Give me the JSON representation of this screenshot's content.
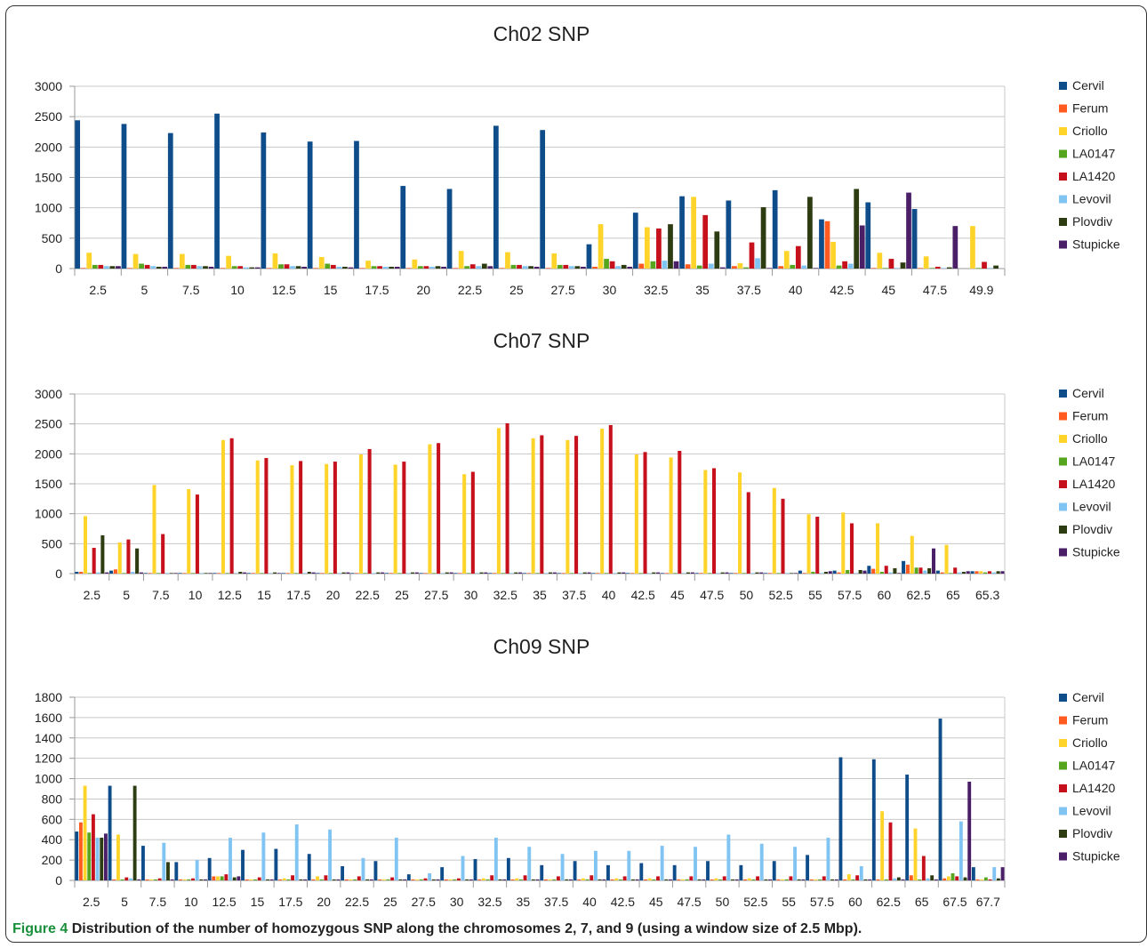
{
  "colors": {
    "Cervil": "#0f4d8a",
    "Ferum": "#ff5a1f",
    "Criollo": "#ffd42a",
    "LA0147": "#56a51f",
    "LA1420": "#c6101b",
    "Levovil": "#7fc4f2",
    "Plovdiv": "#2d3d11",
    "Stupicke": "#4a1f68"
  },
  "caption": {
    "label": "Figure 4",
    "text": "Distribution of the number of homozygous SNP along the chromosomes 2, 7, and 9 (using a window size of 2.5 Mbp)."
  },
  "chart_data": [
    {
      "type": "bar",
      "title": "Ch02 SNP",
      "ylim": [
        0,
        3000
      ],
      "yticks": [
        0,
        500,
        1000,
        1500,
        2000,
        2500,
        3000
      ],
      "grid": true,
      "legend_position": "right",
      "categories": [
        "2.5",
        "5",
        "7.5",
        "10",
        "12.5",
        "15",
        "17.5",
        "20",
        "22.5",
        "25",
        "27.5",
        "30",
        "32.5",
        "35",
        "37.5",
        "40",
        "42.5",
        "45",
        "47.5",
        "49.9"
      ],
      "series": [
        {
          "name": "Cervil",
          "values": [
            2440,
            2380,
            2230,
            2550,
            2240,
            2090,
            2100,
            1360,
            1310,
            2350,
            2280,
            400,
            920,
            1190,
            1120,
            1290,
            810,
            1090,
            980,
            0
          ]
        },
        {
          "name": "Ferum",
          "values": [
            10,
            10,
            10,
            10,
            10,
            10,
            10,
            10,
            10,
            10,
            10,
            30,
            80,
            70,
            40,
            40,
            780,
            10,
            10,
            0
          ]
        },
        {
          "name": "Criollo",
          "values": [
            260,
            240,
            240,
            210,
            250,
            190,
            130,
            150,
            290,
            270,
            250,
            730,
            680,
            1180,
            90,
            290,
            440,
            260,
            200,
            700
          ]
        },
        {
          "name": "LA0147",
          "values": [
            60,
            80,
            60,
            40,
            70,
            80,
            40,
            40,
            40,
            60,
            60,
            160,
            120,
            50,
            20,
            60,
            50,
            10,
            10,
            10
          ]
        },
        {
          "name": "LA1420",
          "values": [
            60,
            60,
            60,
            40,
            70,
            60,
            40,
            40,
            70,
            60,
            60,
            120,
            660,
            880,
            430,
            370,
            120,
            160,
            30,
            110
          ]
        },
        {
          "name": "Levovil",
          "values": [
            40,
            40,
            40,
            20,
            40,
            30,
            30,
            30,
            40,
            40,
            40,
            40,
            130,
            80,
            170,
            50,
            80,
            10,
            10,
            10
          ]
        },
        {
          "name": "Plovdiv",
          "values": [
            40,
            30,
            40,
            20,
            40,
            30,
            30,
            40,
            80,
            40,
            40,
            60,
            730,
            610,
            1010,
            1180,
            1310,
            100,
            20,
            50
          ]
        },
        {
          "name": "Stupicke",
          "values": [
            40,
            30,
            30,
            20,
            30,
            20,
            30,
            30,
            40,
            30,
            30,
            30,
            120,
            20,
            10,
            10,
            710,
            1250,
            700,
            0
          ]
        }
      ]
    },
    {
      "type": "bar",
      "title": "Ch07 SNP",
      "ylim": [
        0,
        3000
      ],
      "yticks": [
        0,
        500,
        1000,
        1500,
        2000,
        2500,
        3000
      ],
      "grid": true,
      "legend_position": "right",
      "categories": [
        "2.5",
        "5",
        "7.5",
        "10",
        "12.5",
        "15",
        "17.5",
        "20",
        "22.5",
        "25",
        "27.5",
        "30",
        "32.5",
        "35",
        "37.5",
        "40",
        "42.5",
        "45",
        "47.5",
        "50",
        "52.5",
        "55",
        "57.5",
        "60",
        "62.5",
        "65",
        "65.3"
      ],
      "series": [
        {
          "name": "Cervil",
          "values": [
            30,
            50,
            10,
            10,
            10,
            10,
            10,
            10,
            10,
            10,
            10,
            10,
            10,
            10,
            10,
            10,
            10,
            10,
            10,
            10,
            10,
            50,
            50,
            130,
            210,
            50,
            40
          ]
        },
        {
          "name": "Ferum",
          "values": [
            30,
            70,
            10,
            10,
            10,
            10,
            10,
            10,
            10,
            10,
            10,
            10,
            10,
            10,
            10,
            10,
            10,
            10,
            10,
            10,
            10,
            10,
            20,
            80,
            150,
            20,
            40
          ]
        },
        {
          "name": "Criollo",
          "values": [
            960,
            520,
            1480,
            1410,
            2230,
            1890,
            1810,
            1830,
            1990,
            1820,
            2160,
            1660,
            2430,
            2260,
            2230,
            2420,
            1990,
            1940,
            1730,
            1690,
            1430,
            990,
            1020,
            840,
            630,
            480,
            40
          ]
        },
        {
          "name": "LA0147",
          "values": [
            10,
            10,
            10,
            10,
            10,
            10,
            10,
            10,
            10,
            10,
            10,
            10,
            10,
            10,
            10,
            10,
            10,
            10,
            10,
            10,
            10,
            30,
            60,
            30,
            100,
            10,
            20
          ]
        },
        {
          "name": "LA1420",
          "values": [
            430,
            570,
            660,
            1320,
            2260,
            1930,
            1880,
            1870,
            2080,
            1870,
            2180,
            1700,
            2510,
            2310,
            2300,
            2480,
            2030,
            2050,
            1760,
            1360,
            1250,
            950,
            840,
            130,
            100,
            100,
            40
          ]
        },
        {
          "name": "Levovil",
          "values": [
            20,
            30,
            10,
            10,
            10,
            10,
            10,
            10,
            10,
            10,
            10,
            10,
            10,
            10,
            10,
            10,
            10,
            10,
            10,
            10,
            10,
            10,
            10,
            20,
            50,
            20,
            20
          ]
        },
        {
          "name": "Plovdiv",
          "values": [
            640,
            420,
            10,
            10,
            30,
            20,
            30,
            20,
            20,
            20,
            20,
            20,
            20,
            20,
            20,
            20,
            20,
            20,
            20,
            20,
            10,
            30,
            60,
            90,
            90,
            30,
            40
          ]
        },
        {
          "name": "Stupicke",
          "values": [
            20,
            20,
            10,
            10,
            20,
            10,
            20,
            20,
            20,
            20,
            20,
            20,
            20,
            20,
            20,
            20,
            20,
            20,
            20,
            20,
            10,
            40,
            50,
            10,
            420,
            40,
            40
          ]
        }
      ]
    },
    {
      "type": "bar",
      "title": "Ch09 SNP",
      "ylim": [
        0,
        1800
      ],
      "yticks": [
        0,
        200,
        400,
        600,
        800,
        1000,
        1200,
        1400,
        1600,
        1800
      ],
      "grid": true,
      "legend_position": "right",
      "categories": [
        "2.5",
        "5",
        "7.5",
        "10",
        "12.5",
        "15",
        "17.5",
        "20",
        "22.5",
        "25",
        "27.5",
        "30",
        "32.5",
        "35",
        "37.5",
        "40",
        "42.5",
        "45",
        "47.5",
        "50",
        "52.5",
        "55",
        "57.5",
        "60",
        "62.5",
        "65",
        "67.5",
        "67.7"
      ],
      "series": [
        {
          "name": "Cervil",
          "values": [
            480,
            930,
            340,
            180,
            220,
            300,
            310,
            260,
            140,
            190,
            60,
            130,
            210,
            220,
            150,
            190,
            150,
            170,
            150,
            190,
            150,
            190,
            250,
            1210,
            1190,
            1040,
            1590,
            130
          ]
        },
        {
          "name": "Ferum",
          "values": [
            570,
            10,
            10,
            10,
            40,
            10,
            10,
            10,
            10,
            10,
            10,
            10,
            10,
            10,
            10,
            10,
            10,
            10,
            10,
            10,
            10,
            10,
            10,
            10,
            10,
            50,
            20,
            10
          ]
        },
        {
          "name": "Criollo",
          "values": [
            930,
            450,
            10,
            10,
            40,
            10,
            20,
            40,
            10,
            10,
            10,
            10,
            20,
            20,
            10,
            20,
            20,
            20,
            10,
            20,
            20,
            10,
            10,
            60,
            680,
            510,
            40,
            10
          ]
        },
        {
          "name": "LA0147",
          "values": [
            470,
            10,
            10,
            10,
            40,
            10,
            10,
            10,
            10,
            10,
            10,
            10,
            10,
            10,
            10,
            10,
            10,
            10,
            10,
            10,
            10,
            10,
            10,
            10,
            10,
            10,
            70,
            30
          ]
        },
        {
          "name": "LA1420",
          "values": [
            650,
            30,
            20,
            20,
            60,
            30,
            50,
            50,
            40,
            30,
            20,
            20,
            50,
            50,
            40,
            50,
            40,
            40,
            40,
            40,
            40,
            40,
            40,
            50,
            570,
            240,
            40,
            10
          ]
        },
        {
          "name": "Levovil",
          "values": [
            420,
            20,
            370,
            200,
            420,
            470,
            550,
            500,
            220,
            420,
            70,
            240,
            420,
            330,
            260,
            290,
            290,
            340,
            330,
            450,
            360,
            330,
            420,
            140,
            20,
            20,
            580,
            130
          ]
        },
        {
          "name": "Plovdiv",
          "values": [
            420,
            930,
            180,
            10,
            30,
            10,
            10,
            10,
            10,
            10,
            10,
            10,
            10,
            10,
            10,
            10,
            10,
            10,
            10,
            10,
            10,
            10,
            10,
            10,
            30,
            50,
            30,
            20
          ]
        },
        {
          "name": "Stupicke",
          "values": [
            460,
            10,
            10,
            10,
            40,
            10,
            10,
            10,
            10,
            10,
            10,
            10,
            10,
            10,
            10,
            10,
            10,
            10,
            10,
            10,
            10,
            10,
            10,
            10,
            10,
            10,
            970,
            130
          ]
        }
      ]
    }
  ]
}
